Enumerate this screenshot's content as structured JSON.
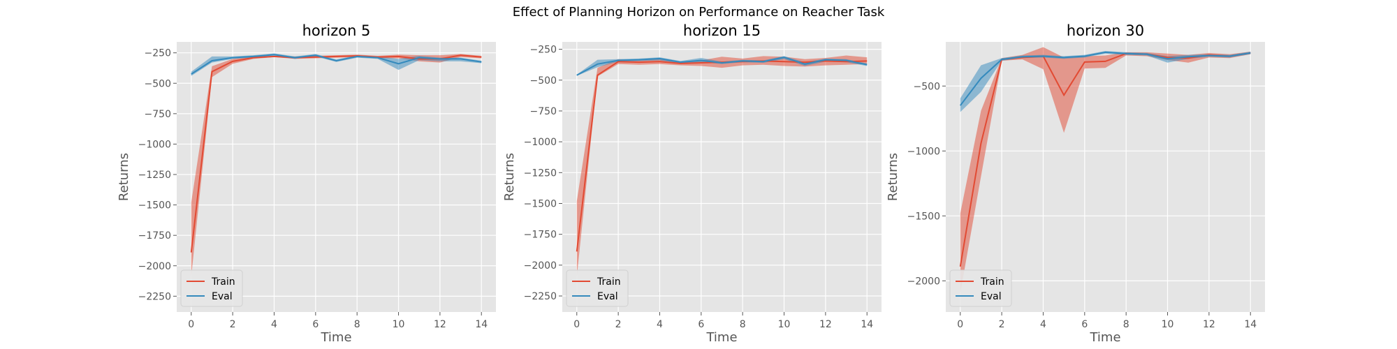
{
  "figure": {
    "title": "Effect of Planning Horizon on Performance on Reacher Task"
  },
  "colors": {
    "train": "#e24a33",
    "eval": "#348abd",
    "panel_bg": "#e5e5e5",
    "grid": "#ffffff",
    "tick_text": "#555555"
  },
  "chart_data": [
    {
      "type": "line",
      "title": "horizon 5",
      "xlabel": "Time",
      "ylabel": "Returns",
      "xlim": [
        -0.7,
        14.7
      ],
      "ylim": [
        -2380,
        -160
      ],
      "xticks": [
        0,
        2,
        4,
        6,
        8,
        10,
        12,
        14
      ],
      "yticks": [
        -2250,
        -2000,
        -1750,
        -1500,
        -1250,
        -1000,
        -750,
        -500,
        -250
      ],
      "grid": true,
      "legend": "lower-left",
      "x": [
        0,
        1,
        2,
        3,
        4,
        5,
        6,
        7,
        8,
        9,
        10,
        11,
        12,
        13,
        14
      ],
      "series": [
        {
          "name": "Train",
          "color": "#e24a33",
          "values": [
            -1890,
            -405,
            -320,
            -290,
            -280,
            -290,
            -285,
            -280,
            -275,
            -285,
            -280,
            -300,
            -300,
            -270,
            -285
          ],
          "lower": [
            -2090,
            -450,
            -340,
            -300,
            -285,
            -300,
            -295,
            -290,
            -285,
            -295,
            -295,
            -320,
            -330,
            -285,
            -295
          ],
          "upper": [
            -1480,
            -360,
            -300,
            -280,
            -275,
            -280,
            -275,
            -270,
            -265,
            -275,
            -265,
            -270,
            -270,
            -260,
            -275
          ]
        },
        {
          "name": "Eval",
          "color": "#348abd",
          "values": [
            -425,
            -315,
            -290,
            -280,
            -265,
            -290,
            -270,
            -315,
            -280,
            -290,
            -340,
            -290,
            -300,
            -300,
            -325
          ],
          "lower": [
            -440,
            -330,
            -300,
            -290,
            -275,
            -300,
            -280,
            -325,
            -290,
            -300,
            -390,
            -310,
            -320,
            -320,
            -335
          ],
          "upper": [
            -405,
            -280,
            -280,
            -270,
            -255,
            -280,
            -260,
            -305,
            -270,
            -280,
            -300,
            -275,
            -290,
            -290,
            -315
          ]
        }
      ]
    },
    {
      "type": "line",
      "title": "horizon 15",
      "xlabel": "Time",
      "ylabel": "Returns",
      "xlim": [
        -0.7,
        14.7
      ],
      "ylim": [
        -2380,
        -190
      ],
      "xticks": [
        0,
        2,
        4,
        6,
        8,
        10,
        12,
        14
      ],
      "yticks": [
        -2250,
        -2000,
        -1750,
        -1500,
        -1250,
        -1000,
        -750,
        -500,
        -250
      ],
      "grid": true,
      "legend": "lower-left",
      "x": [
        0,
        1,
        2,
        3,
        4,
        5,
        6,
        7,
        8,
        9,
        10,
        11,
        12,
        13,
        14
      ],
      "series": [
        {
          "name": "Train",
          "color": "#e24a33",
          "values": [
            -1890,
            -460,
            -350,
            -355,
            -350,
            -365,
            -360,
            -355,
            -350,
            -345,
            -350,
            -355,
            -345,
            -350,
            -345
          ],
          "lower": [
            -2095,
            -470,
            -370,
            -375,
            -370,
            -380,
            -385,
            -400,
            -380,
            -375,
            -385,
            -390,
            -380,
            -375,
            -370
          ],
          "upper": [
            -1480,
            -400,
            -330,
            -340,
            -330,
            -355,
            -340,
            -310,
            -325,
            -305,
            -310,
            -330,
            -320,
            -300,
            -315
          ]
        },
        {
          "name": "Eval",
          "color": "#348abd",
          "values": [
            -460,
            -370,
            -340,
            -335,
            -325,
            -355,
            -340,
            -360,
            -345,
            -350,
            -315,
            -370,
            -335,
            -340,
            -375
          ],
          "lower": [
            -465,
            -395,
            -350,
            -345,
            -340,
            -365,
            -355,
            -370,
            -355,
            -360,
            -330,
            -385,
            -350,
            -355,
            -385
          ],
          "upper": [
            -455,
            -335,
            -330,
            -325,
            -315,
            -345,
            -320,
            -350,
            -335,
            -340,
            -305,
            -355,
            -325,
            -330,
            -365
          ]
        }
      ]
    },
    {
      "type": "line",
      "title": "horizon 30",
      "xlabel": "Time",
      "ylabel": "Returns",
      "xlim": [
        -0.7,
        14.7
      ],
      "ylim": [
        -2240,
        -160
      ],
      "xticks": [
        0,
        2,
        4,
        6,
        8,
        10,
        12,
        14
      ],
      "yticks": [
        -2000,
        -1500,
        -1000,
        -500
      ],
      "grid": true,
      "legend": "lower-left",
      "x": [
        0,
        1,
        2,
        3,
        4,
        5,
        6,
        7,
        8,
        9,
        10,
        11,
        12,
        13,
        14
      ],
      "series": [
        {
          "name": "Train",
          "color": "#e24a33",
          "values": [
            -1890,
            -940,
            -295,
            -280,
            -270,
            -570,
            -315,
            -310,
            -250,
            -255,
            -280,
            -285,
            -260,
            -270,
            -245
          ],
          "lower": [
            -2095,
            -1195,
            -305,
            -295,
            -370,
            -860,
            -365,
            -360,
            -265,
            -270,
            -300,
            -320,
            -280,
            -285,
            -255
          ],
          "upper": [
            -1480,
            -690,
            -285,
            -260,
            -200,
            -280,
            -270,
            -265,
            -240,
            -240,
            -250,
            -260,
            -245,
            -255,
            -235
          ]
        },
        {
          "name": "Eval",
          "color": "#348abd",
          "values": [
            -650,
            -440,
            -295,
            -275,
            -270,
            -280,
            -270,
            -240,
            -250,
            -255,
            -290,
            -275,
            -265,
            -270,
            -245
          ],
          "lower": [
            -700,
            -545,
            -305,
            -285,
            -280,
            -290,
            -280,
            -250,
            -260,
            -265,
            -320,
            -290,
            -275,
            -280,
            -255
          ],
          "upper": [
            -595,
            -340,
            -285,
            -265,
            -260,
            -270,
            -260,
            -230,
            -240,
            -245,
            -270,
            -260,
            -255,
            -260,
            -235
          ]
        }
      ]
    }
  ]
}
